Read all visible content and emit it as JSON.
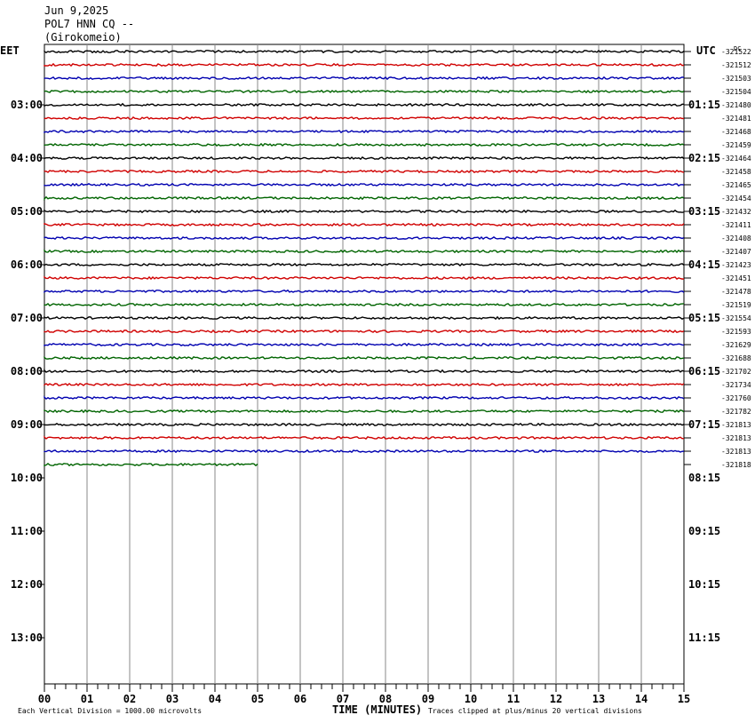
{
  "header": {
    "date": "Jun 9,2025",
    "station": "POL7 HNN CQ --",
    "location": "(Girokomeio)"
  },
  "chart_data": {
    "type": "line",
    "title": "",
    "left_timezone": "EET",
    "right_timezone": "UTC",
    "dc_label": "DC",
    "xlabel": "TIME (MINUTES)",
    "x_tick_labels": [
      "00",
      "01",
      "02",
      "03",
      "04",
      "05",
      "06",
      "07",
      "08",
      "09",
      "10",
      "11",
      "12",
      "13",
      "14",
      "15"
    ],
    "xlim": [
      0,
      15
    ],
    "minutes_per_line": 15,
    "left_hour_labels": [
      "03:00",
      "04:00",
      "05:00",
      "06:00",
      "07:00",
      "08:00",
      "09:00",
      "10:00",
      "11:00",
      "12:00",
      "13:00"
    ],
    "right_hour_labels": [
      "01:15",
      "02:15",
      "03:15",
      "04:15",
      "05:15",
      "06:15",
      "07:15",
      "08:15",
      "09:15",
      "10:15",
      "11:15"
    ],
    "trace_colors": [
      "#000000",
      "#d00000",
      "#0000b0",
      "#006400"
    ],
    "dc_offsets": [
      "-321522",
      "-321512",
      "-321503",
      "-321504",
      "-321480",
      "-321481",
      "-321468",
      "-321459",
      "-321464",
      "-321458",
      "-321465",
      "-321454",
      "-321432",
      "-321411",
      "-321408",
      "-321407",
      "-321423",
      "-321451",
      "-321478",
      "-321519",
      "-321554",
      "-321593",
      "-321629",
      "-321688",
      "-321702",
      "-321734",
      "-321760",
      "-321782",
      "-321813",
      "-321813",
      "-321813",
      "-321818"
    ],
    "last_trace_end_minute": 5,
    "footer_left": "Each Vertical Division = 1000.00 microvolts",
    "footer_right": "Traces clipped at plus/minus 20 vertical divisions"
  }
}
